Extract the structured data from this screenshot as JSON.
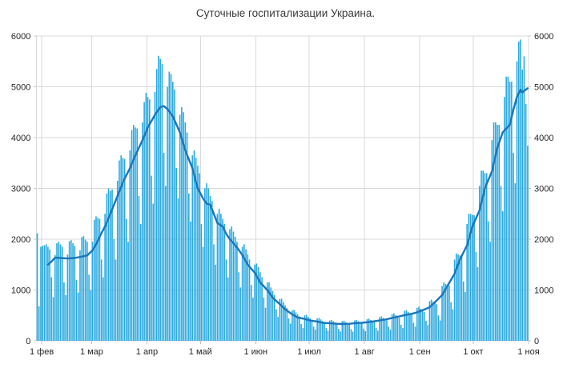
{
  "title": "Суточные госпитализации Украина.",
  "colors": {
    "bar": "#2BAAE1",
    "line": "#1B75BB",
    "grid": "#D9D9D9",
    "tick": "#BFBFBF",
    "text": "#262626",
    "background": "#FFFFFF"
  },
  "chart_data": {
    "type": "bar+line",
    "title": "Суточные госпитализации Украина.",
    "xlabel": "",
    "ylabel": "",
    "grid": true,
    "legend": "none",
    "y_axis": {
      "min": 0,
      "max": 6000,
      "step": 1000,
      "tick_labels": [
        "0",
        "1000",
        "2000",
        "3000",
        "4000",
        "5000",
        "6000"
      ],
      "shown_on": "both-sides"
    },
    "x_axis": {
      "tick_labels": [
        "1 фев",
        "1 мар",
        "1 апр",
        "1 май",
        "1 июн",
        "1 июл",
        "1 авг",
        "1 сен",
        "1 окт",
        "1 ноя"
      ],
      "tick_day_index": [
        3,
        31,
        62,
        92,
        123,
        153,
        184,
        215,
        245,
        276
      ]
    },
    "bars": {
      "description": "daily hospitalizations, one bar per day (starting a few days before 1 Feb tick)",
      "values": [
        2115,
        680,
        1850,
        1870,
        1880,
        1900,
        1850,
        1800,
        1250,
        860,
        1690,
        1920,
        1950,
        1900,
        1850,
        1150,
        900,
        1700,
        1960,
        1980,
        1920,
        1870,
        1200,
        950,
        1780,
        2040,
        2060,
        1990,
        1950,
        1300,
        1000,
        1950,
        2380,
        2450,
        2420,
        2400,
        1600,
        1250,
        2500,
        2900,
        3000,
        2950,
        2980,
        2000,
        1600,
        3150,
        3550,
        3650,
        3600,
        3580,
        2400,
        1950,
        3750,
        4150,
        4250,
        4200,
        4180,
        2850,
        2300,
        4300,
        4700,
        4880,
        4800,
        4750,
        3250,
        2700,
        4900,
        5350,
        5610,
        5550,
        5450,
        3700,
        3050,
        5000,
        5300,
        5250,
        5100,
        4950,
        3400,
        2800,
        4450,
        4600,
        4500,
        4300,
        4100,
        2900,
        2350,
        3650,
        3750,
        3600,
        3450,
        3300,
        2300,
        1850,
        3000,
        3100,
        3000,
        2850,
        2750,
        1900,
        1500,
        2500,
        2600,
        2500,
        2400,
        2300,
        1600,
        1250,
        2200,
        2250,
        2150,
        2050,
        1950,
        1350,
        1050,
        1850,
        1900,
        1800,
        1700,
        1600,
        1100,
        850,
        1500,
        1520,
        1450,
        1350,
        1250,
        850,
        650,
        1150,
        1150,
        1050,
        980,
        900,
        620,
        470,
        820,
        830,
        760,
        700,
        650,
        440,
        340,
        600,
        610,
        560,
        520,
        480,
        330,
        250,
        500,
        510,
        470,
        440,
        410,
        280,
        220,
        440,
        450,
        420,
        390,
        370,
        250,
        200,
        400,
        410,
        385,
        360,
        340,
        235,
        185,
        385,
        395,
        370,
        350,
        335,
        230,
        180,
        400,
        410,
        385,
        365,
        350,
        240,
        190,
        425,
        435,
        410,
        385,
        370,
        255,
        200,
        465,
        480,
        450,
        425,
        405,
        280,
        220,
        525,
        540,
        505,
        480,
        455,
        315,
        250,
        590,
        605,
        570,
        540,
        510,
        355,
        280,
        650,
        670,
        630,
        600,
        570,
        395,
        310,
        780,
        810,
        770,
        740,
        720,
        500,
        400,
        1080,
        1150,
        1120,
        1100,
        1090,
        760,
        620,
        1600,
        1720,
        1700,
        1680,
        1670,
        1170,
        960,
        2300,
        2500,
        2500,
        2480,
        2470,
        1750,
        1450,
        3050,
        3350,
        3350,
        3300,
        3300,
        2350,
        1950,
        3950,
        4300,
        4300,
        4250,
        4250,
        3050,
        2550,
        4800,
        5200,
        5200,
        5100,
        5100,
        3700,
        3100,
        5500,
        5890,
        5930,
        5340,
        5600,
        4660,
        3840
      ]
    },
    "smoothed_line": {
      "description": "7-day moving average overlay, points as [day_index, value]",
      "points": [
        [
          6,
          1500
        ],
        [
          8,
          1560
        ],
        [
          10,
          1640
        ],
        [
          13,
          1630
        ],
        [
          17,
          1620
        ],
        [
          21,
          1630
        ],
        [
          24,
          1650
        ],
        [
          28,
          1680
        ],
        [
          31,
          1780
        ],
        [
          33,
          1900
        ],
        [
          36,
          2120
        ],
        [
          38,
          2250
        ],
        [
          41,
          2500
        ],
        [
          45,
          2850
        ],
        [
          48,
          3120
        ],
        [
          52,
          3400
        ],
        [
          55,
          3650
        ],
        [
          59,
          3950
        ],
        [
          62,
          4200
        ],
        [
          66,
          4450
        ],
        [
          69,
          4600
        ],
        [
          71,
          4620
        ],
        [
          73,
          4560
        ],
        [
          76,
          4420
        ],
        [
          80,
          4100
        ],
        [
          83,
          3750
        ],
        [
          87,
          3400
        ],
        [
          90,
          3000
        ],
        [
          93,
          2800
        ],
        [
          95,
          2700
        ],
        [
          97,
          2680
        ],
        [
          101,
          2320
        ],
        [
          104,
          2250
        ],
        [
          106,
          2100
        ],
        [
          108,
          2000
        ],
        [
          112,
          1840
        ],
        [
          115,
          1690
        ],
        [
          118,
          1500
        ],
        [
          122,
          1340
        ],
        [
          125,
          1150
        ],
        [
          129,
          1000
        ],
        [
          132,
          850
        ],
        [
          136,
          720
        ],
        [
          139,
          620
        ],
        [
          143,
          520
        ],
        [
          146,
          460
        ],
        [
          150,
          430
        ],
        [
          153,
          400
        ],
        [
          157,
          380
        ],
        [
          160,
          355
        ],
        [
          164,
          345
        ],
        [
          168,
          335
        ],
        [
          171,
          330
        ],
        [
          175,
          335
        ],
        [
          178,
          345
        ],
        [
          182,
          355
        ],
        [
          185,
          365
        ],
        [
          189,
          385
        ],
        [
          192,
          400
        ],
        [
          196,
          425
        ],
        [
          199,
          450
        ],
        [
          203,
          480
        ],
        [
          206,
          505
        ],
        [
          210,
          530
        ],
        [
          213,
          560
        ],
        [
          216,
          600
        ],
        [
          220,
          660
        ],
        [
          223,
          760
        ],
        [
          227,
          900
        ],
        [
          230,
          1080
        ],
        [
          234,
          1320
        ],
        [
          237,
          1600
        ],
        [
          241,
          1880
        ],
        [
          244,
          2250
        ],
        [
          248,
          2570
        ],
        [
          251,
          3000
        ],
        [
          255,
          3340
        ],
        [
          258,
          3800
        ],
        [
          261,
          4100
        ],
        [
          263,
          4180
        ],
        [
          265,
          4250
        ],
        [
          267,
          4550
        ],
        [
          269,
          4800
        ],
        [
          271,
          4940
        ],
        [
          272,
          4890
        ],
        [
          273,
          4920
        ],
        [
          275,
          4970
        ]
      ]
    }
  }
}
